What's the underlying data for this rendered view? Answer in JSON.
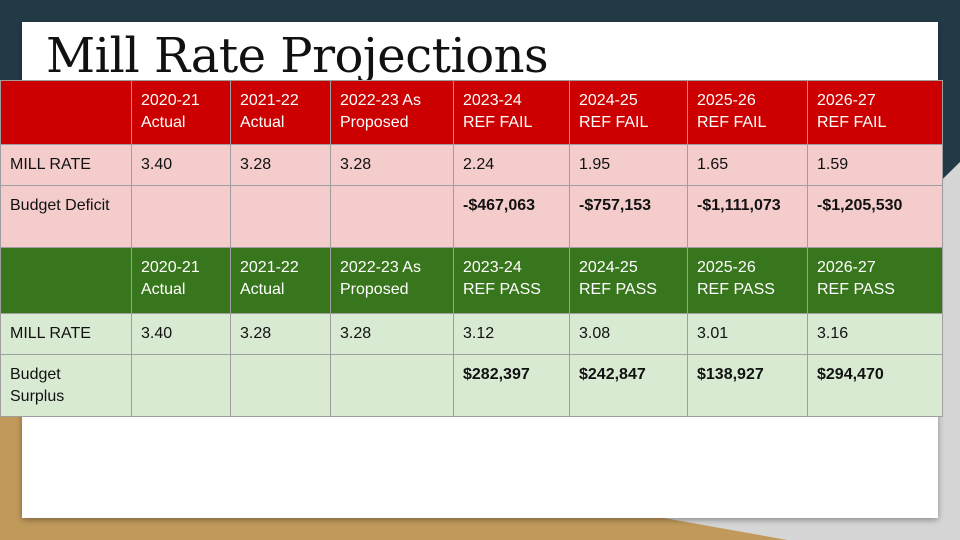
{
  "slide": {
    "title": "Mill Rate Projections"
  },
  "fail_table": {
    "headers": [
      {
        "line1": "",
        "line2": ""
      },
      {
        "line1": "2020-21",
        "line2": "Actual"
      },
      {
        "line1": "2021-22",
        "line2": "Actual"
      },
      {
        "line1": "2022-23 As",
        "line2": "Proposed"
      },
      {
        "line1": "2023-24",
        "line2": "REF FAIL"
      },
      {
        "line1": "2024-25",
        "line2": "REF FAIL"
      },
      {
        "line1": "2025-26",
        "line2": "REF FAIL"
      },
      {
        "line1": "2026-27",
        "line2": "REF FAIL"
      }
    ],
    "mill_rate": [
      "MILL RATE",
      "3.40",
      "3.28",
      "3.28",
      "2.24",
      "1.95",
      "1.65",
      "1.59"
    ],
    "deficit": [
      "Budget Deficit",
      "",
      "",
      "",
      "-$467,063",
      "-$757,153",
      "-$1,111,073",
      "-$1,205,530"
    ]
  },
  "pass_table": {
    "headers": [
      {
        "line1": "",
        "line2": ""
      },
      {
        "line1": "2020-21",
        "line2": "Actual"
      },
      {
        "line1": "2021-22",
        "line2": "Actual"
      },
      {
        "line1": "2022-23 As",
        "line2": "Proposed"
      },
      {
        "line1": "2023-24",
        "line2": "REF PASS"
      },
      {
        "line1": "2024-25",
        "line2": "REF PASS"
      },
      {
        "line1": "2025-26",
        "line2": "REF PASS"
      },
      {
        "line1": "2026-27",
        "line2": "REF PASS"
      }
    ],
    "mill_rate": [
      "MILL RATE",
      "3.40",
      "3.28",
      "3.28",
      "3.12",
      "3.08",
      "3.01",
      "3.16"
    ],
    "surplus": [
      "Budget\nSurplus",
      "",
      "",
      "",
      "$282,397",
      "$242,847",
      "$138,927",
      "$294,470"
    ]
  },
  "colors": {
    "fail_header": "#cc0000",
    "fail_row": "#f4cccc",
    "pass_header": "#38761d",
    "pass_row": "#d9ead3",
    "deficit_text": "#ff0000"
  }
}
